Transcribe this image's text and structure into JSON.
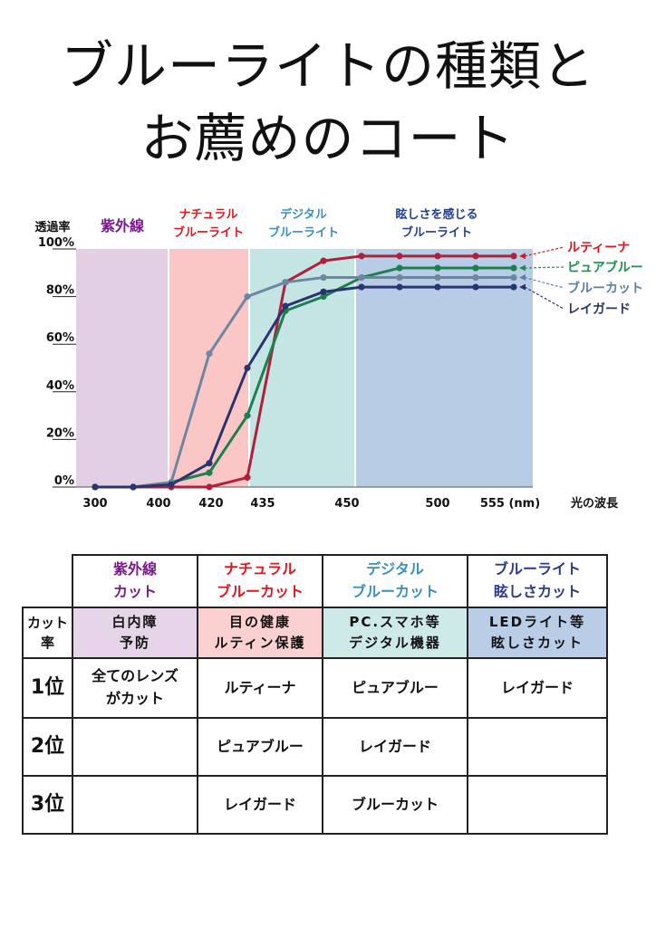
{
  "title": {
    "line1": "ブルーライトの種類と",
    "line2": "お薦めのコート"
  },
  "colors": {
    "uv": "#7a1a8c",
    "natural": "#e0161e",
    "digital": "#3a8fbf",
    "glare": "#1f3f8f",
    "bg_uv": "#e2cfe4",
    "bg_natural": "#fbc6c6",
    "bg_digital": "#c4e5e3",
    "bg_glare": "#b7cde6"
  },
  "chart_data": {
    "type": "line",
    "ylabel": "透過率",
    "xlabel": "光の波長",
    "x_ticks": [
      "300",
      "400",
      "420",
      "435",
      "450",
      "500",
      "555 (nm)"
    ],
    "y_ticks": [
      "0%",
      "20%",
      "40%",
      "60%",
      "80%",
      "100%"
    ],
    "ylim": [
      0,
      100
    ],
    "bands": [
      {
        "label": [
          "紫外線"
        ],
        "range": [
          "300",
          "400"
        ],
        "color": "#e2cfe4",
        "label_color": "#7a1a8c"
      },
      {
        "label": [
          "ナチュラル",
          "ブルーライト"
        ],
        "range": [
          "400",
          "435"
        ],
        "color": "#fbc6c6",
        "label_color": "#e0161e"
      },
      {
        "label": [
          "デジタル",
          "ブルーライト"
        ],
        "range": [
          "435",
          "450"
        ],
        "color": "#c4e5e3",
        "label_color": "#3a8fbf"
      },
      {
        "label": [
          "眩しさを感じる",
          "ブルーライト"
        ],
        "range": [
          "450",
          "555 (nm)"
        ],
        "color": "#b7cde6",
        "label_color": "#1f3f8f"
      }
    ],
    "series": [
      {
        "name": "ルティーナ",
        "color": "#b0203a",
        "label_color": "#e0161e",
        "values": [
          0,
          0,
          0,
          0,
          4,
          86,
          95,
          97,
          97,
          97,
          97,
          97
        ]
      },
      {
        "name": "ピュアブルー",
        "color": "#1e7f4e",
        "label_color": "#1e8f4e",
        "values": [
          0,
          0,
          2,
          6,
          30,
          74,
          80,
          88,
          92,
          92,
          92,
          92
        ]
      },
      {
        "name": "ブルーカット",
        "color": "#6f86a0",
        "label_color": "#5a7fa8",
        "values": [
          0,
          0,
          2,
          56,
          80,
          86,
          88,
          88,
          88,
          88,
          88,
          88
        ]
      },
      {
        "name": "レイガード",
        "color": "#2b3470",
        "label_color": "#2b3470",
        "values": [
          0,
          0,
          1,
          10,
          50,
          76,
          82,
          84,
          84,
          84,
          84,
          84
        ]
      }
    ]
  },
  "table": {
    "headers": [
      {
        "line1": "紫外線",
        "line2": "カット"
      },
      {
        "line1": "ナチュラル",
        "line2": "ブルーカット"
      },
      {
        "line1": "デジタル",
        "line2": "ブルーカット"
      },
      {
        "line1": "ブルーライト",
        "line2": "眩しさカット"
      }
    ],
    "cut_label": {
      "line1": "カット",
      "line2": "率"
    },
    "uses": [
      {
        "line1": "白内障",
        "line2": "予防"
      },
      {
        "line1": "目の健康",
        "line2": "ルティン保護"
      },
      {
        "line1": "PC.スマホ等",
        "line2": "デジタル機器"
      },
      {
        "line1": "LEDライト等",
        "line2": "眩しさカット"
      }
    ],
    "ranks": [
      {
        "label": "1位",
        "cells": [
          {
            "line1": "全てのレンズ",
            "line2": "がカット"
          },
          {
            "line1": "ルティーナ",
            "line2": ""
          },
          {
            "line1": "ピュアブルー",
            "line2": ""
          },
          {
            "line1": "レイガード",
            "line2": ""
          }
        ]
      },
      {
        "label": "2位",
        "cells": [
          {
            "line1": "",
            "line2": ""
          },
          {
            "line1": "ピュアブルー",
            "line2": ""
          },
          {
            "line1": "レイガード",
            "line2": ""
          },
          {
            "line1": "",
            "line2": ""
          }
        ]
      },
      {
        "label": "3位",
        "cells": [
          {
            "line1": "",
            "line2": ""
          },
          {
            "line1": "レイガード",
            "line2": ""
          },
          {
            "line1": "ブルーカット",
            "line2": ""
          },
          {
            "line1": "",
            "line2": ""
          }
        ]
      }
    ]
  }
}
